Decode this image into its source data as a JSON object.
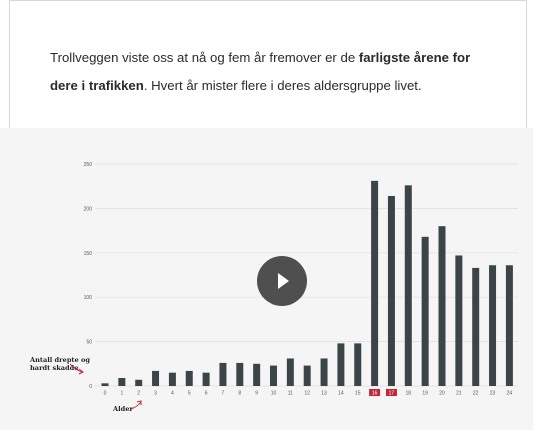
{
  "intro": {
    "part1": "Trollveggen viste oss at nå og fem år fremover er de ",
    "bold": "farligste årene for dere i trafikken",
    "part2": ". Hvert år mister flere i deres aldersgruppe livet."
  },
  "chart_data": {
    "type": "bar",
    "title": "",
    "xlabel": "Alder",
    "ylabel": "Antall drepte og hardt skadde",
    "ylim": [
      0,
      250
    ],
    "yticks": [
      0,
      50,
      100,
      150,
      200,
      250
    ],
    "grid": true,
    "categories": [
      "0",
      "1",
      "2",
      "3",
      "4",
      "5",
      "6",
      "7",
      "8",
      "9",
      "10",
      "11",
      "12",
      "13",
      "14",
      "15",
      "16",
      "17",
      "18",
      "19",
      "20",
      "21",
      "22",
      "23",
      "24"
    ],
    "values": [
      3,
      9,
      7,
      17,
      15,
      17,
      15,
      26,
      26,
      25,
      23,
      31,
      23,
      31,
      48,
      48,
      231,
      214,
      226,
      168,
      180,
      147,
      133,
      136,
      136
    ],
    "highlight_categories": [
      "16",
      "17"
    ],
    "bar_color": "#3b4548",
    "highlight_label_color": "#c0283a"
  },
  "annotations": {
    "ylabel_line1": "Antall drepte og",
    "ylabel_line2": "hardt skadde",
    "xlabel": "Alder"
  },
  "video": {
    "icon": "play-icon"
  }
}
